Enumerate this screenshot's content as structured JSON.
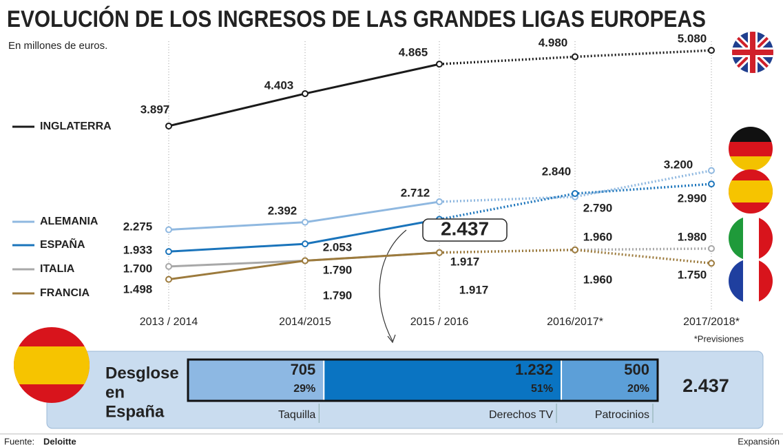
{
  "chart_data": [
    {
      "type": "line",
      "title": "EVOLUCIÓN DE LOS INGRESOS DE LAS GRANDES LIGAS EUROPEAS",
      "subtitle": "En millones de euros.",
      "categories": [
        "2013 / 2014",
        "2014/2015",
        "2015 / 2016",
        "2016/2017*",
        "2017/2018*"
      ],
      "dotted_from_index": 2,
      "ylim": [
        1300,
        5200
      ],
      "series": [
        {
          "name": "INGLATERRA",
          "color": "#1a1a1a",
          "values": [
            3897,
            4403,
            4865,
            4980,
            5080
          ],
          "value_labels": [
            "3.897",
            "4.403",
            "4.865",
            "4.980",
            "5.080"
          ]
        },
        {
          "name": "ALEMANIA",
          "color": "#8fb8e0",
          "values": [
            2275,
            2392,
            2712,
            2790,
            3200
          ],
          "value_labels": [
            "2.275",
            "2.392",
            "2.712",
            "2.790",
            "3.200"
          ]
        },
        {
          "name": "ESPAÑA",
          "color": "#1a74bb",
          "values": [
            1933,
            2053,
            2437,
            2840,
            2990
          ],
          "value_labels": [
            "1.933",
            "2.053",
            "2.437",
            "2.840",
            "2.990"
          ]
        },
        {
          "name": "ITALIA",
          "color": "#a8a8a8",
          "values": [
            1700,
            1790,
            1917,
            1960,
            1980
          ],
          "value_labels": [
            "1.700",
            "1.790",
            "1.917",
            "1.960",
            "1.980"
          ]
        },
        {
          "name": "FRANCIA",
          "color": "#9c7a3c",
          "values": [
            1498,
            1790,
            1917,
            1960,
            1750
          ],
          "value_labels": [
            "1.498",
            "1.790",
            "1.917",
            "1.960",
            "1.750"
          ]
        }
      ],
      "note": "*Previsiones"
    },
    {
      "type": "stacked_bar",
      "title": [
        "Desglose",
        "en",
        "España"
      ],
      "categories": [
        "Taquilla",
        "Derechos TV",
        "Patrocinios"
      ],
      "values": [
        705,
        1232,
        500
      ],
      "value_labels": [
        "705",
        "1.232",
        "500"
      ],
      "shares": [
        29,
        51,
        20
      ],
      "share_labels": [
        "29%",
        "51%",
        "20%"
      ],
      "colors": [
        "#8db8e3",
        "#0a74c2",
        "#5c9fd8"
      ],
      "total": 2437,
      "total_label": "2.437"
    }
  ],
  "source_label": "Fuente:",
  "source": "Deloitte",
  "credit": "Expansión"
}
